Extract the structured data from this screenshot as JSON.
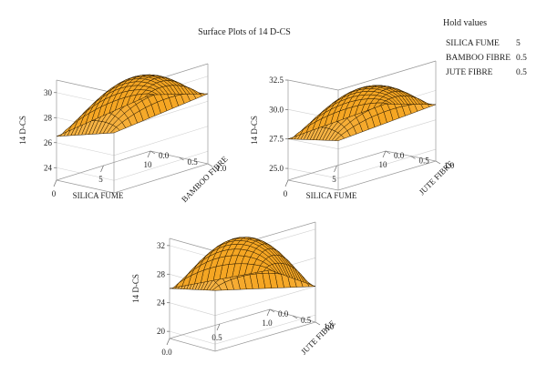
{
  "chart_data": [
    {
      "type": "surface",
      "title": "Surface Plots of 14 D-CS",
      "zlabel": "14 D-CS",
      "xlabel": "SILICA FUME",
      "ylabel": "BAMBOO FIBRE",
      "xlim": [
        0,
        10
      ],
      "ylim": [
        0,
        1
      ],
      "zlim": [
        23,
        31
      ],
      "xticks": [
        "0",
        "5",
        "10"
      ],
      "yticks": [
        "0.0",
        "0.5",
        "1.0"
      ],
      "zticks": [
        "24",
        "26",
        "28",
        "30"
      ],
      "surface": {
        "corner_x0_y0": 26.5,
        "corner_x10_y0": 27.5,
        "corner_x0_y1": 27.8,
        "corner_x10_y1": 28.6,
        "peak": 30.5
      }
    },
    {
      "type": "surface",
      "zlabel": "14 D-CS",
      "xlabel": "SILICA FUME",
      "ylabel": "JUTE FIBRE",
      "xlim": [
        0,
        10
      ],
      "ylim": [
        0,
        1
      ],
      "zlim": [
        24,
        32.5
      ],
      "xticks": [
        "0",
        "5",
        "10"
      ],
      "yticks": [
        "0.0",
        "0.5",
        "1.0"
      ],
      "zticks": [
        "25.0",
        "27.5",
        "30.0",
        "32.5"
      ],
      "surface": {
        "corner_x0_y0": 27.5,
        "corner_x10_y0": 28.0,
        "corner_x0_y1": 28.2,
        "corner_x10_y1": 28.8,
        "peak": 31.0
      }
    },
    {
      "type": "surface",
      "zlabel": "14 D-CS",
      "xlabel": "",
      "ylabel": "JUTE FIBRE",
      "xlim": [
        0,
        1
      ],
      "ylim": [
        0,
        1
      ],
      "zlim": [
        19,
        33
      ],
      "xticks": [
        "0.0",
        "0.5",
        "1.0"
      ],
      "yticks": [
        "0.0",
        "0.5",
        "1.0"
      ],
      "zticks": [
        "20",
        "24",
        "28",
        "32"
      ],
      "surface": {
        "corner_x0_y0": 26.0,
        "corner_x10_y0": 24.5,
        "corner_x0_y1": 27.5,
        "corner_x10_y1": 24.0,
        "peak": 32.0
      }
    }
  ],
  "hold_values": {
    "title": "Hold values",
    "rows": [
      {
        "name": "SILICA FUME",
        "value": "5"
      },
      {
        "name": "BAMBOO FIBRE",
        "value": "0.5"
      },
      {
        "name": "JUTE FIBRE",
        "value": "0.5"
      }
    ]
  },
  "colors": {
    "surface": "#f5a623",
    "mesh": "#2b1a00",
    "box": "#999999",
    "grid": "#d0d0d0"
  }
}
